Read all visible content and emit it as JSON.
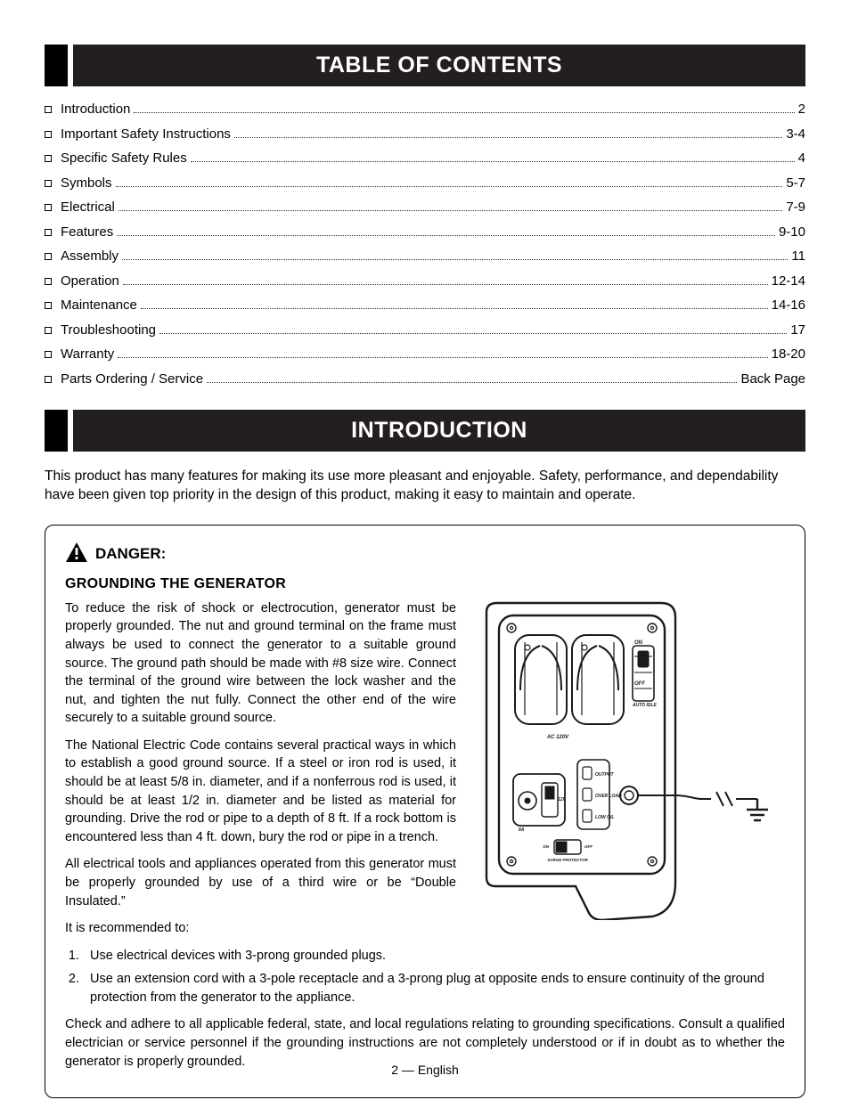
{
  "colors": {
    "header_bg": "#231f20",
    "header_fg": "#ffffff",
    "body_fg": "#000000",
    "dotted": "#2b2b2b",
    "box_border": "#000000"
  },
  "typography": {
    "header_fontsize": 25,
    "header_weight": "bold",
    "body_fontsize": 15,
    "toc_fontsize": 15,
    "danger_heading_fontsize": 17,
    "danger_sub_fontsize": 16,
    "body_line_height": 1.4
  },
  "section_headers": {
    "toc": "TABLE OF CONTENTS",
    "intro": "INTRODUCTION"
  },
  "toc": {
    "items": [
      {
        "label": "Introduction",
        "page": "2"
      },
      {
        "label": "Important Safety Instructions",
        "page": "3-4"
      },
      {
        "label": "Specific Safety Rules",
        "page": "4"
      },
      {
        "label": "Symbols",
        "page": "5-7"
      },
      {
        "label": "Electrical",
        "page": "7-9"
      },
      {
        "label": "Features",
        "page": "9-10"
      },
      {
        "label": "Assembly",
        "page": "11"
      },
      {
        "label": "Operation",
        "page": "12-14"
      },
      {
        "label": "Maintenance",
        "page": "14-16"
      },
      {
        "label": "Troubleshooting",
        "page": "17"
      },
      {
        "label": "Warranty",
        "page": "18-20"
      },
      {
        "label": "Parts Ordering / Service",
        "page": "Back Page"
      }
    ]
  },
  "intro": {
    "paragraph": "This product has many features for making its use more pleasant and enjoyable. Safety, performance, and dependability have been given top priority in the design of this product, making it easy to maintain and operate."
  },
  "danger": {
    "label": "DANGER:",
    "subheading": "GROUNDING THE GENERATOR",
    "p1": "To reduce the risk of shock or electrocution, generator must be properly grounded. The nut and ground terminal on the frame must always be used to connect the generator to a suitable ground source. The ground path should be made with #8 size wire. Connect the terminal of the ground wire between the lock washer and the nut, and tighten the nut fully. Connect the other end of the wire securely to a suitable ground source.",
    "p2": "The National Electric Code contains several practical ways in which to establish a good ground source. If a steel or iron rod is used, it should be at least 5/8 in. diameter, and if a nonferrous rod is used, it should be at least 1/2 in. diameter and be listed as material for grounding. Drive the rod or pipe to a depth of 8 ft. If a rock bottom is encountered less than 4 ft. down, bury the rod or pipe in a trench.",
    "p3": "All electrical tools and appliances operated from this generator must be properly grounded by use of a third wire or be “Double Insulated.”",
    "rec_intro": "It is recommended to:",
    "rec1": "Use electrical devices with 3-prong grounded plugs.",
    "rec2": "Use an extension cord with a 3-pole receptacle and a 3-prong plug at opposite ends to ensure continuity of the ground protection from the generator to the appliance.",
    "p4": "Check and adhere to all applicable federal, state, and local regulations relating to grounding specifications. Consult a qualified electrician or service personnel if the grounding instructions are not completely understood or if in doubt as to whether the generator is properly grounded."
  },
  "figure": {
    "panel_labels": {
      "on": "ON",
      "off": "OFF",
      "auto_idle": "AUTO IDLE",
      "ac120v": "AC 120V",
      "output": "OUTPUT",
      "overload": "OVER LOAD",
      "low_oil": "LOW OIL",
      "twelve_v": "12V",
      "eight_a": "8A",
      "surge_protector": "SURGE PROTECTOR"
    },
    "stroke_color": "#1a1a1a",
    "stroke_width_thick": 2.4,
    "stroke_width_thin": 1.4
  },
  "footer": {
    "page_label": "2 — English"
  }
}
